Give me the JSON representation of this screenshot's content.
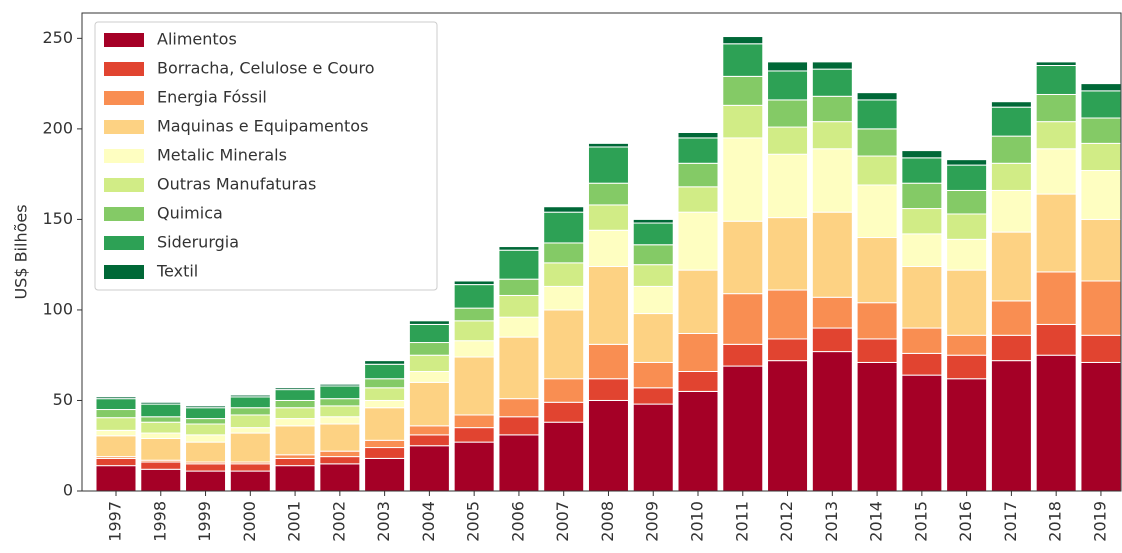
{
  "chart_data": {
    "type": "stacked_bar",
    "ylabel": "US$ Bilhões",
    "categories": [
      "1997",
      "1998",
      "1999",
      "2000",
      "2001",
      "2002",
      "2003",
      "2004",
      "2005",
      "2006",
      "2007",
      "2008",
      "2009",
      "2010",
      "2011",
      "2012",
      "2013",
      "2014",
      "2015",
      "2016",
      "2017",
      "2018",
      "2019"
    ],
    "series": [
      {
        "name": "Alimentos",
        "color": "#a50026",
        "values": [
          14,
          12,
          11,
          11,
          14,
          15,
          18,
          25,
          27,
          31,
          38,
          50,
          48,
          55,
          69,
          72,
          77,
          71,
          64,
          62,
          72,
          75,
          71
        ]
      },
      {
        "name": "Borracha, Celulose e Couro",
        "color": "#e14430",
        "values": [
          4,
          4,
          4,
          4,
          4,
          4,
          6,
          6,
          8,
          10,
          11,
          12,
          9,
          11,
          12,
          12,
          13,
          13,
          12,
          13,
          14,
          17,
          15
        ]
      },
      {
        "name": "Energia Fóssil",
        "color": "#f98e52",
        "values": [
          1,
          1,
          1,
          1,
          2,
          3,
          4,
          5,
          7,
          10,
          13,
          19,
          14,
          21,
          28,
          27,
          17,
          20,
          14,
          11,
          19,
          29,
          30
        ]
      },
      {
        "name": "Maquinas e Equipamentos",
        "color": "#fdd283",
        "values": [
          11.5,
          12,
          11,
          16,
          16,
          15,
          18,
          24,
          32,
          34,
          38,
          43,
          27,
          35,
          40,
          40,
          47,
          36,
          34,
          36,
          38,
          43,
          34
        ]
      },
      {
        "name": "Metalic Minerals",
        "color": "#fefec1",
        "values": [
          3,
          3,
          4,
          3,
          4,
          4,
          4,
          6,
          9,
          11,
          13,
          20,
          15,
          32,
          46,
          35,
          35,
          29,
          18,
          17,
          23,
          25,
          27
        ]
      },
      {
        "name": "Outras Manufaturas",
        "color": "#d1ec86",
        "values": [
          7,
          6,
          6,
          7,
          6,
          6,
          7,
          9,
          11,
          12,
          13,
          14,
          12,
          14,
          18,
          15,
          15,
          16,
          14,
          14,
          15,
          15,
          15
        ]
      },
      {
        "name": "Quimica",
        "color": "#84ca66",
        "values": [
          4.5,
          3,
          3,
          4,
          4,
          4,
          5,
          7,
          7,
          9,
          11,
          12,
          11,
          13,
          16,
          15,
          14,
          15,
          14,
          13,
          15,
          15,
          14
        ]
      },
      {
        "name": "Siderurgia",
        "color": "#2da155",
        "values": [
          6,
          7,
          6,
          6,
          6,
          7,
          8,
          10,
          13,
          16,
          17,
          20,
          12,
          14,
          18,
          16,
          15,
          16,
          14,
          14,
          16,
          16,
          15
        ]
      },
      {
        "name": "Textil",
        "color": "#006837",
        "values": [
          1,
          1,
          1,
          1,
          1,
          1,
          2,
          2,
          2,
          2,
          3,
          2,
          2,
          3,
          4,
          5,
          4,
          4,
          4,
          3,
          3,
          2,
          4
        ]
      }
    ],
    "ylim": [
      0,
      264
    ],
    "yticks": [
      0,
      50,
      100,
      150,
      200,
      250
    ],
    "legend": "upper left"
  }
}
